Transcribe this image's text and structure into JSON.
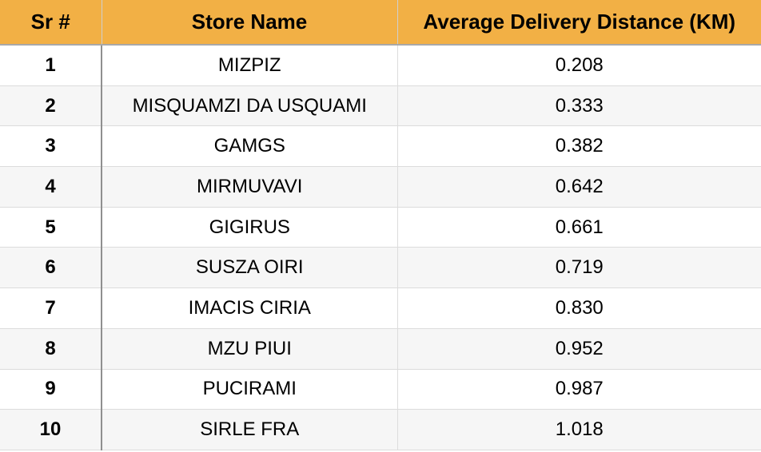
{
  "headers": {
    "sr": "Sr #",
    "store": "Store Name",
    "distance": "Average Delivery Distance (KM)"
  },
  "rows": [
    {
      "sr": "1",
      "store": "MIZPIZ",
      "distance": "0.208"
    },
    {
      "sr": "2",
      "store": "MISQUAMZI DA USQUAMI",
      "distance": "0.333"
    },
    {
      "sr": "3",
      "store": "GAMGS",
      "distance": "0.382"
    },
    {
      "sr": "4",
      "store": "MIRMUVAVI",
      "distance": "0.642"
    },
    {
      "sr": "5",
      "store": "GIGIRUS",
      "distance": "0.661"
    },
    {
      "sr": "6",
      "store": "SUSZA OIRI",
      "distance": "0.719"
    },
    {
      "sr": "7",
      "store": "IMACIS CIRIA",
      "distance": "0.830"
    },
    {
      "sr": "8",
      "store": "MZU PIUI",
      "distance": "0.952"
    },
    {
      "sr": "9",
      "store": "PUCIRAMI",
      "distance": "0.987"
    },
    {
      "sr": "10",
      "store": "SIRLE FRA",
      "distance": "1.018"
    }
  ],
  "colors": {
    "header_background": "#f2b045",
    "stripe_background": "#f6f6f6"
  }
}
